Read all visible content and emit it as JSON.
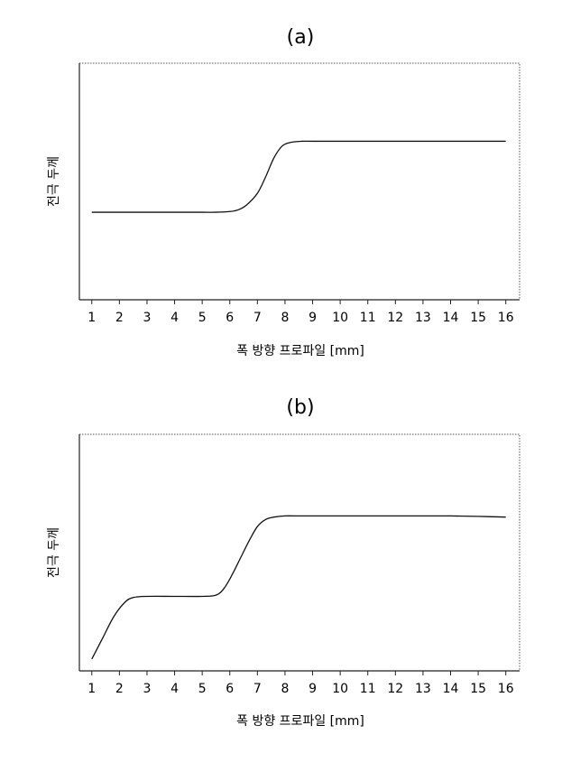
{
  "chart_data": [
    {
      "type": "line",
      "title": "(a)",
      "xlabel": "폭 방향 프로파일 [mm]",
      "ylabel": "전극 두께",
      "x_ticks": [
        "1",
        "2",
        "3",
        "4",
        "5",
        "6",
        "7",
        "8",
        "9",
        "10",
        "11",
        "12",
        "13",
        "14",
        "15",
        "16"
      ],
      "xlim": [
        0.55,
        16.5
      ],
      "ylim": [
        0,
        1
      ],
      "grid": false,
      "series": [
        {
          "x": [
            1,
            2,
            3,
            4,
            5,
            5.5,
            6,
            6.3,
            6.6,
            7,
            7.3,
            7.6,
            7.9,
            8.2,
            8.6,
            9,
            10,
            11,
            12,
            13,
            14,
            15,
            16
          ],
          "y": [
            0.37,
            0.37,
            0.37,
            0.37,
            0.37,
            0.37,
            0.373,
            0.38,
            0.4,
            0.45,
            0.52,
            0.6,
            0.65,
            0.665,
            0.67,
            0.67,
            0.67,
            0.67,
            0.67,
            0.67,
            0.67,
            0.67,
            0.67
          ]
        }
      ]
    },
    {
      "type": "line",
      "title": "(b)",
      "xlabel": "폭 방향 프로파일 [mm]",
      "ylabel": "전극 두께",
      "x_ticks": [
        "1",
        "2",
        "3",
        "4",
        "5",
        "6",
        "7",
        "8",
        "9",
        "10",
        "11",
        "12",
        "13",
        "14",
        "15",
        "16"
      ],
      "xlim": [
        0.55,
        16.5
      ],
      "ylim": [
        0,
        1
      ],
      "grid": false,
      "series": [
        {
          "x": [
            1,
            1.4,
            1.8,
            2.2,
            2.5,
            3,
            4,
            5,
            5.5,
            5.8,
            6.1,
            6.4,
            6.7,
            7,
            7.3,
            7.6,
            8,
            8.5,
            9,
            10,
            11,
            12,
            13,
            14,
            15,
            16
          ],
          "y": [
            0.05,
            0.14,
            0.23,
            0.29,
            0.31,
            0.315,
            0.315,
            0.315,
            0.32,
            0.35,
            0.41,
            0.48,
            0.55,
            0.61,
            0.64,
            0.65,
            0.655,
            0.655,
            0.655,
            0.655,
            0.655,
            0.655,
            0.655,
            0.655,
            0.653,
            0.65
          ]
        }
      ]
    }
  ]
}
